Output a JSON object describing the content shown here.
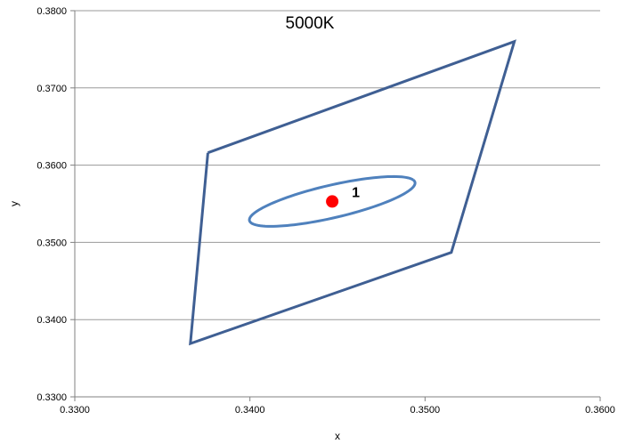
{
  "chart_data": {
    "type": "scatter",
    "title": "5000K",
    "xlabel": "x",
    "ylabel": "y",
    "xlim": [
      0.33,
      0.36
    ],
    "ylim": [
      0.33,
      0.38
    ],
    "x_ticks": [
      0.33,
      0.34,
      0.35,
      0.36
    ],
    "y_ticks": [
      0.33,
      0.34,
      0.35,
      0.36,
      0.37,
      0.38
    ],
    "x_tick_labels": [
      "0.3300",
      "0.3400",
      "0.3500",
      "0.3600"
    ],
    "y_tick_labels": [
      "0.3300",
      "0.3400",
      "0.3500",
      "0.3600",
      "0.3700",
      "0.3800"
    ],
    "grid": "horizontal",
    "quadrangle": {
      "color": "#3f5f93",
      "x": [
        0.3376,
        0.3551,
        0.3515,
        0.3366,
        0.3376
      ],
      "y": [
        0.3616,
        0.376,
        0.3487,
        0.3369,
        0.3616
      ]
    },
    "ellipse": {
      "color": "#4f81bd",
      "center": [
        0.3447,
        0.3553
      ],
      "semi_major_axis": 0.0054,
      "semi_minor_axis": 0.0019,
      "rotation_deg": 31
    },
    "point": {
      "label": "1",
      "x": 0.3447,
      "y": 0.3553,
      "color": "#ff0000"
    },
    "colors": {
      "grid": "#9a9a9a",
      "axis": "#808080"
    }
  }
}
